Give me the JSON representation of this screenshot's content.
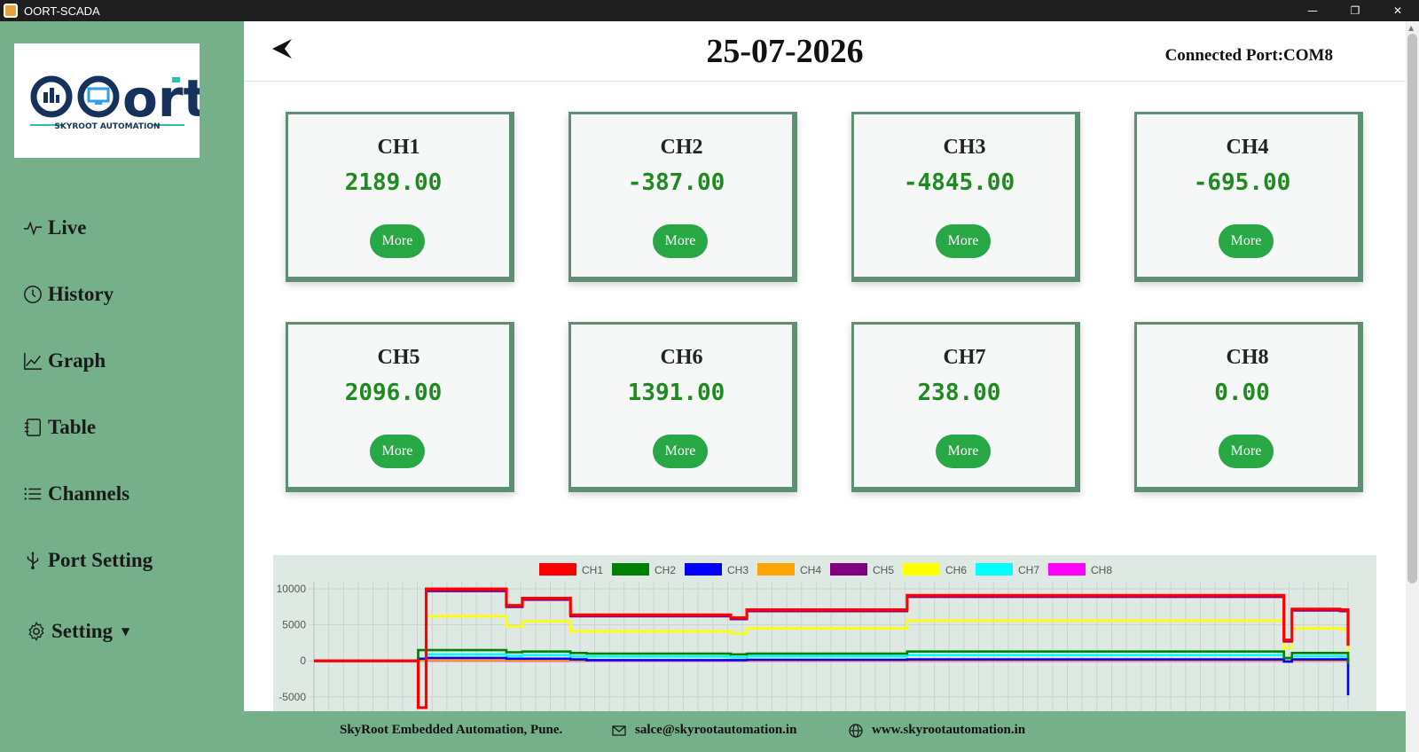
{
  "window": {
    "title": "OORT-SCADA",
    "minimize": "—",
    "restore": "❐",
    "close": "✕"
  },
  "sidebar": {
    "logo_text": "ort",
    "logo_tagline": "SKYROOT AUTOMATION",
    "items": [
      {
        "label": "Live",
        "icon": "pulse-icon"
      },
      {
        "label": "History",
        "icon": "clock-icon"
      },
      {
        "label": "Graph",
        "icon": "line-chart-icon"
      },
      {
        "label": "Table",
        "icon": "notebook-icon"
      },
      {
        "label": "Channels",
        "icon": "list-icon"
      },
      {
        "label": "Port Setting",
        "icon": "usb-icon"
      },
      {
        "label": "Setting",
        "icon": "gear-icon"
      }
    ]
  },
  "header": {
    "date": "25-07-2026",
    "port": "Connected Port:COM8"
  },
  "channels": [
    {
      "name": "CH1",
      "value": "2189.00",
      "button": "More"
    },
    {
      "name": "CH2",
      "value": "-387.00",
      "button": "More"
    },
    {
      "name": "CH3",
      "value": "-4845.00",
      "button": "More"
    },
    {
      "name": "CH4",
      "value": "-695.00",
      "button": "More"
    },
    {
      "name": "CH5",
      "value": "2096.00",
      "button": "More"
    },
    {
      "name": "CH6",
      "value": "1391.00",
      "button": "More"
    },
    {
      "name": "CH7",
      "value": "238.00",
      "button": "More"
    },
    {
      "name": "CH8",
      "value": "0.00",
      "button": "More"
    }
  ],
  "chart_data": {
    "type": "line",
    "ylim": [
      -7000,
      11000
    ],
    "yticks": [
      "10000",
      "5000",
      "0",
      "-5000"
    ],
    "ytick_values": [
      10000,
      5000,
      0,
      -5000
    ],
    "x": [
      0,
      6,
      6.5,
      7,
      8,
      12,
      13,
      16,
      17,
      26,
      27,
      29,
      34,
      37,
      37.5,
      38,
      60,
      60.5,
      61,
      63,
      64,
      64.5
    ],
    "legend_position": "top",
    "series": [
      {
        "name": "CH1",
        "color": "#ff0000",
        "values": [
          0,
          0,
          -6500,
          10000,
          10000,
          7700,
          8700,
          6400,
          6400,
          6000,
          7100,
          7100,
          7100,
          9100,
          9100,
          9100,
          9100,
          2900,
          7200,
          7200,
          7100,
          2200
        ]
      },
      {
        "name": "CH2",
        "color": "#008000",
        "values": [
          0,
          0,
          1500,
          1500,
          1500,
          1200,
          1300,
          1100,
          1000,
          900,
          1000,
          1000,
          1000,
          1300,
          1300,
          1300,
          1300,
          400,
          1100,
          1100,
          1100,
          -400
        ]
      },
      {
        "name": "CH3",
        "color": "#0000ff",
        "values": [
          0,
          0,
          300,
          400,
          400,
          300,
          300,
          200,
          100,
          100,
          150,
          150,
          150,
          200,
          200,
          200,
          200,
          -100,
          200,
          200,
          200,
          -4800
        ]
      },
      {
        "name": "CH4",
        "color": "#ffa500",
        "values": [
          0,
          0,
          0,
          100,
          100,
          80,
          80,
          60,
          50,
          40,
          50,
          50,
          50,
          60,
          60,
          60,
          60,
          0,
          50,
          50,
          50,
          -700
        ]
      },
      {
        "name": "CH5",
        "color": "#800080",
        "values": [
          0,
          0,
          0,
          9700,
          9700,
          7500,
          8500,
          6200,
          6200,
          5800,
          6900,
          6900,
          6900,
          8900,
          8900,
          8900,
          8900,
          2700,
          7000,
          7000,
          6900,
          2100
        ]
      },
      {
        "name": "CH6",
        "color": "#ffff00",
        "values": [
          0,
          0,
          0,
          6200,
          6200,
          4800,
          5500,
          4100,
          4100,
          3800,
          4500,
          4500,
          4500,
          5600,
          5600,
          5600,
          5600,
          1800,
          4500,
          4500,
          4400,
          1400
        ]
      },
      {
        "name": "CH7",
        "color": "#00ffff",
        "values": [
          0,
          0,
          0,
          900,
          900,
          700,
          800,
          600,
          600,
          500,
          650,
          650,
          650,
          800,
          800,
          800,
          800,
          200,
          650,
          650,
          600,
          240
        ]
      },
      {
        "name": "CH8",
        "color": "#ff00ff",
        "values": [
          0,
          0,
          0,
          30,
          30,
          20,
          20,
          20,
          20,
          20,
          20,
          20,
          20,
          20,
          20,
          20,
          20,
          0,
          20,
          20,
          20,
          0
        ]
      }
    ]
  },
  "footer": {
    "company": "SkyRoot Embedded Automation, Pune.",
    "email": "salce@skyrootautomation.in",
    "website": "www.skyrootautomation.in"
  }
}
